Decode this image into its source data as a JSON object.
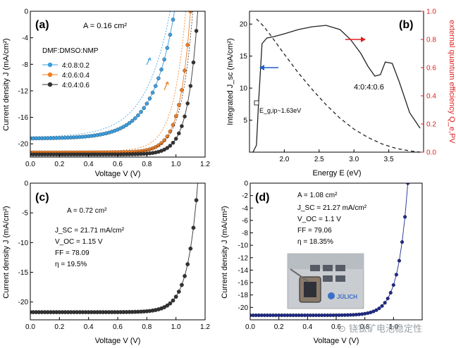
{
  "watermark": "⊙ 铙钛矿电池稳定性",
  "chart_data": [
    {
      "panel": "(a)",
      "type": "scatter",
      "xlabel": "Voltage V (V)",
      "ylabel": "Current density J (mA/cm²)",
      "xlim": [
        0,
        1.2
      ],
      "ylim": [
        -22,
        0
      ],
      "xticks": [
        0.0,
        0.2,
        0.4,
        0.6,
        0.8,
        1.0,
        1.2
      ],
      "yticks": [
        -20,
        -16,
        -12,
        -8,
        -4,
        0
      ],
      "annotation": "A = 0.16 cm²",
      "legend_title": "DMF:DMSO:NMP",
      "legend_position": "top-left",
      "series": [
        {
          "name": "4:0.8:0.2",
          "color": "#3b9fe0",
          "jsc": 19.2,
          "voc": 0.99,
          "n": 2.6
        },
        {
          "name": "4:0.6:0.4",
          "color": "#ef7d22",
          "jsc": 21.3,
          "voc": 1.1,
          "n": 1.3
        },
        {
          "name": "4:0.4:0.6",
          "color": "#333333",
          "jsc": 21.6,
          "voc": 1.15,
          "n": 1.2
        }
      ]
    },
    {
      "panel": "(b)",
      "type": "line",
      "xlabel": "Energy E (eV)",
      "ylabel": "Integrated J_sc (mA/cm²)",
      "ylabel_right": "external quantum efficiency Q_e,PV",
      "xlim": [
        1.5,
        4.0
      ],
      "ylim": [
        0,
        22
      ],
      "ylim_right": [
        0,
        1.0
      ],
      "xticks": [
        2.0,
        2.5,
        3.0,
        3.5
      ],
      "yticks": [
        5,
        10,
        15,
        20
      ],
      "yticks_right": [
        0.0,
        0.2,
        0.4,
        0.6,
        0.8,
        1.0
      ],
      "label": "4:0:4:0.6",
      "eg_label": "E_g,ip~1.63eV",
      "series": [
        {
          "name": "EQE",
          "axis": "right",
          "style": "solid",
          "x": [
            1.55,
            1.6,
            1.63,
            1.68,
            1.75,
            1.85,
            2.0,
            2.2,
            2.4,
            2.6,
            2.8,
            2.95,
            3.1,
            3.2,
            3.3,
            3.38,
            3.45,
            3.55,
            3.65,
            3.8,
            3.95
          ],
          "y": [
            0.0,
            0.05,
            0.35,
            0.77,
            0.81,
            0.82,
            0.84,
            0.87,
            0.89,
            0.9,
            0.87,
            0.8,
            0.7,
            0.61,
            0.54,
            0.55,
            0.64,
            0.63,
            0.5,
            0.28,
            0.17
          ]
        },
        {
          "name": "Integrated Jsc",
          "axis": "left",
          "style": "dashed",
          "x": [
            1.6,
            1.7,
            1.8,
            2.0,
            2.2,
            2.4,
            2.6,
            2.8,
            3.0,
            3.2,
            3.4,
            3.6,
            3.8,
            3.95
          ],
          "y": [
            20.8,
            19.7,
            18.3,
            15.3,
            12.4,
            9.8,
            7.4,
            5.3,
            3.6,
            2.3,
            1.3,
            0.6,
            0.2,
            0.0
          ]
        }
      ]
    },
    {
      "panel": "(c)",
      "type": "scatter",
      "xlabel": "Voltage V (V)",
      "ylabel": "Current density J (mA/cm²)",
      "xlim": [
        0,
        1.2
      ],
      "ylim": [
        -23,
        0
      ],
      "xticks": [
        0.0,
        0.2,
        0.4,
        0.6,
        0.8,
        1.0,
        1.2
      ],
      "yticks": [
        -20,
        -15,
        -10,
        -5,
        0
      ],
      "annotations": [
        "A = 0.72 cm²",
        "J_SC = 21.71 mA/cm²",
        "V_OC = 1.15 V",
        "FF = 78.09",
        "η = 19.5%"
      ],
      "series": [
        {
          "name": "",
          "color": "#333333",
          "jsc": 21.71,
          "voc": 1.15,
          "n": 1.25
        }
      ]
    },
    {
      "panel": "(d)",
      "type": "scatter",
      "xlabel": "Voltage V (V)",
      "ylabel": "Current density J (mA/cm²)",
      "xlim": [
        0,
        1.2
      ],
      "ylim": [
        -22,
        0
      ],
      "xticks": [
        0.0,
        0.2,
        0.4,
        0.6,
        0.8,
        1.0
      ],
      "yticks": [
        -20,
        -18,
        -16,
        -14,
        -12,
        -10,
        -8,
        -6,
        -4,
        -2,
        0
      ],
      "annotations": [
        "A = 1.08 cm²",
        "J_SC = 21.27 mA/cm²",
        "V_OC = 1.1 V",
        "FF = 79.06",
        "η = 18.35%"
      ],
      "inset_text": "JÜLICH",
      "series": [
        {
          "name": "",
          "color": "#1f2a8c",
          "jsc": 21.27,
          "voc": 1.1,
          "n": 1.2
        }
      ]
    }
  ]
}
